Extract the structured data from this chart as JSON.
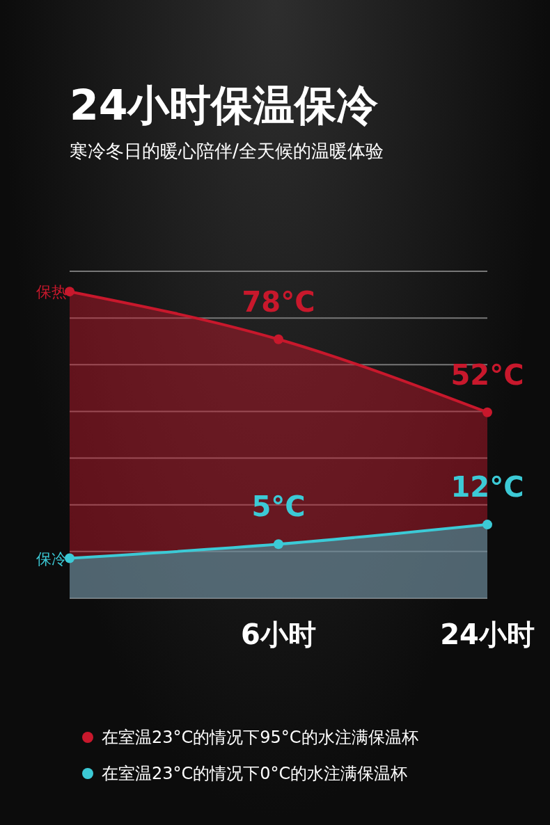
{
  "chart_data": {
    "type": "area",
    "title": "24小时保温保冷",
    "subtitle": "寒冷冬日的暖心陪伴/全天候的温暖体验",
    "categories": [
      null,
      "6小时",
      "24小时"
    ],
    "series": [
      {
        "name": "保热",
        "color": "#c8182c",
        "values": [
          95,
          78,
          52
        ],
        "value_labels": [
          null,
          "78°C",
          "52°C"
        ]
      },
      {
        "name": "保冷",
        "color": "#3ccad6",
        "values": [
          0,
          5,
          12
        ],
        "value_labels": [
          null,
          "5°C",
          "12°C"
        ]
      }
    ],
    "marker": "circle",
    "grid": "y",
    "tick_labels": "x",
    "annotations": [
      "在室温23°C的情况下95°C的水注满保温杯",
      "在室温23°C的情况下0°C的水注满保温杯"
    ]
  }
}
